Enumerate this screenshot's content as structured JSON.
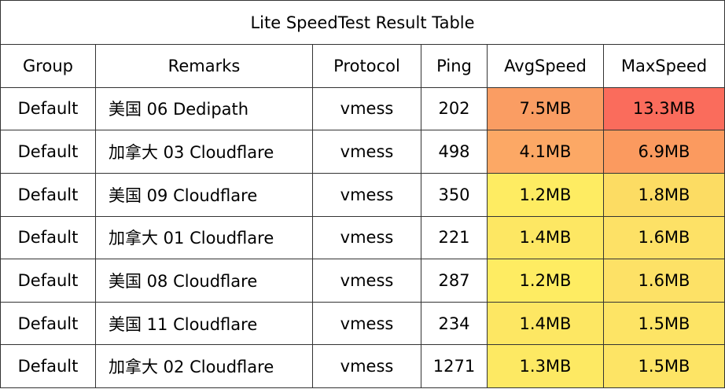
{
  "chart_data": {
    "type": "table",
    "title": "Lite SpeedTest Result Table",
    "columns": [
      "Group",
      "Remarks",
      "Protocol",
      "Ping",
      "AvgSpeed",
      "MaxSpeed"
    ],
    "rows": [
      {
        "cells": [
          "Default",
          "美国 06 Dedipath",
          "vmess",
          202,
          "7.5MB",
          "13.3MB"
        ],
        "avg_color": "#fa9d63",
        "max_color": "#fa6c5c"
      },
      {
        "cells": [
          "Default",
          "加拿大 03 Cloudflare",
          "vmess",
          498,
          "4.1MB",
          "6.9MB"
        ],
        "avg_color": "#fca865",
        "max_color": "#fb9a5f"
      },
      {
        "cells": [
          "Default",
          "美国 09 Cloudflare",
          "vmess",
          350,
          "1.2MB",
          "1.8MB"
        ],
        "avg_color": "#feec62",
        "max_color": "#fcdc63"
      },
      {
        "cells": [
          "Default",
          "加拿大 01 Cloudflare",
          "vmess",
          221,
          "1.4MB",
          "1.6MB"
        ],
        "avg_color": "#fde763",
        "max_color": "#fde166"
      },
      {
        "cells": [
          "Default",
          "美国 08 Cloudflare",
          "vmess",
          287,
          "1.2MB",
          "1.6MB"
        ],
        "avg_color": "#feec62",
        "max_color": "#fde166"
      },
      {
        "cells": [
          "Default",
          "美国 11 Cloudflare",
          "vmess",
          234,
          "1.4MB",
          "1.5MB"
        ],
        "avg_color": "#fde763",
        "max_color": "#fde465"
      },
      {
        "cells": [
          "Default",
          "加拿大 02 Cloudflare",
          "vmess",
          1271,
          "1.3MB",
          "1.5MB"
        ],
        "avg_color": "#fde963",
        "max_color": "#fde465"
      }
    ]
  }
}
